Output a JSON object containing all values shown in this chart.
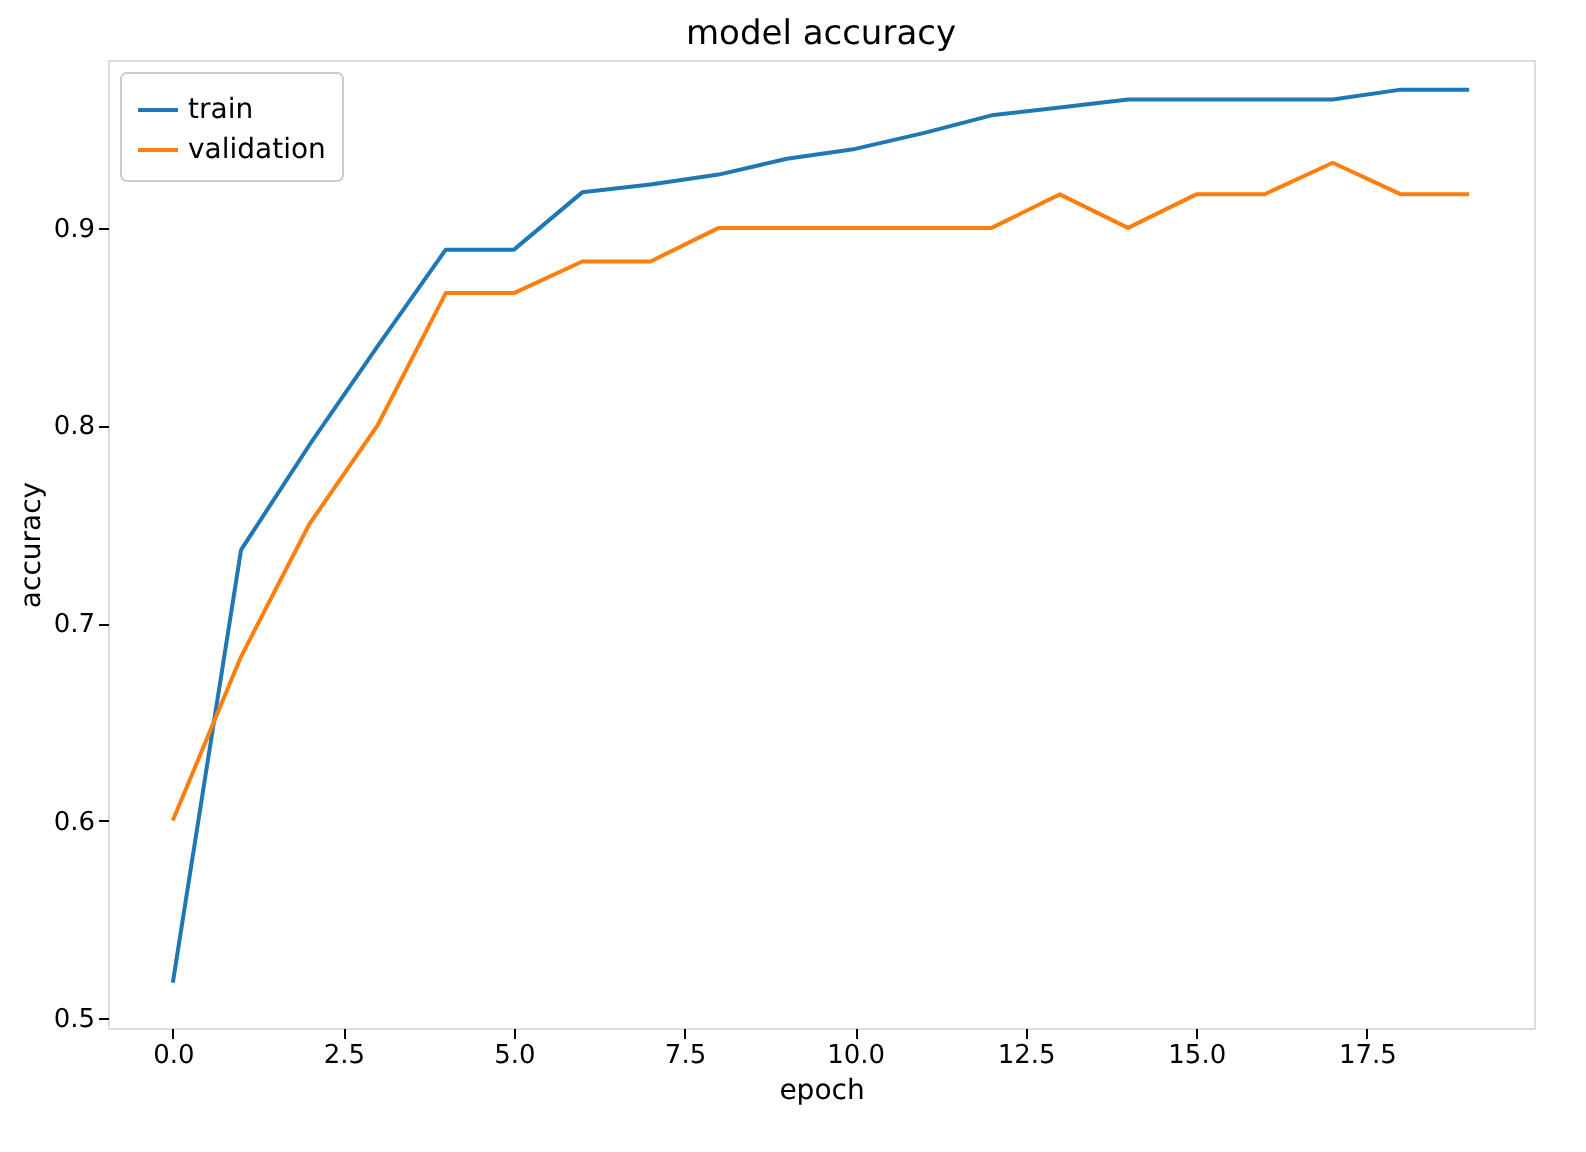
{
  "chart_data": {
    "type": "line",
    "title": "model accuracy",
    "xlabel": "epoch",
    "ylabel": "accuracy",
    "x": [
      0,
      1,
      2,
      3,
      4,
      5,
      6,
      7,
      8,
      9,
      10,
      11,
      12,
      13,
      14,
      15,
      16,
      17,
      18,
      19
    ],
    "series": [
      {
        "name": "train",
        "color": "#1f77b4",
        "values": [
          0.518,
          0.737,
          0.79,
          0.84,
          0.889,
          0.889,
          0.918,
          0.922,
          0.927,
          0.935,
          0.94,
          0.948,
          0.957,
          0.961,
          0.965,
          0.965,
          0.965,
          0.965,
          0.97,
          0.97
        ]
      },
      {
        "name": "validation",
        "color": "#ff7f0e",
        "values": [
          0.6,
          0.683,
          0.75,
          0.8,
          0.867,
          0.867,
          0.883,
          0.883,
          0.9,
          0.9,
          0.9,
          0.9,
          0.9,
          0.917,
          0.9,
          0.917,
          0.917,
          0.933,
          0.917,
          0.917
        ]
      }
    ],
    "xlim": [
      -0.95,
      19.95
    ],
    "ylim": [
      0.495,
      0.985
    ],
    "xticks": [
      {
        "value": 0,
        "label": "0.0"
      },
      {
        "value": 2.5,
        "label": "2.5"
      },
      {
        "value": 5,
        "label": "5.0"
      },
      {
        "value": 7.5,
        "label": "7.5"
      },
      {
        "value": 10,
        "label": "10.0"
      },
      {
        "value": 12.5,
        "label": "12.5"
      },
      {
        "value": 15,
        "label": "15.0"
      },
      {
        "value": 17.5,
        "label": "17.5"
      }
    ],
    "yticks": [
      0.5,
      0.6,
      0.7,
      0.8,
      0.9
    ],
    "legend": "top left",
    "grid": false,
    "marker": "none",
    "line_style": "solid"
  }
}
